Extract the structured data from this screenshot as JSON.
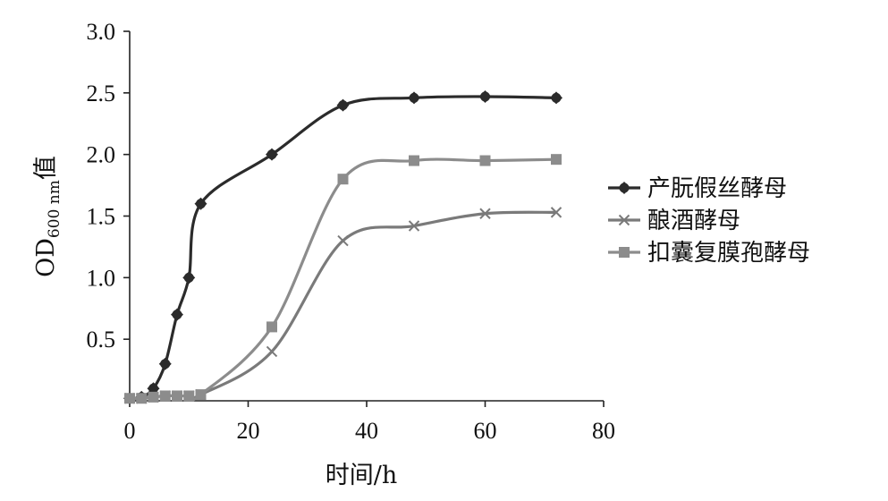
{
  "chart_data": {
    "type": "line",
    "xlabel": "时间/h",
    "ylabel": {
      "main": "OD",
      "sub": "600 nm",
      "suffix": "值"
    },
    "xlim": [
      0,
      80
    ],
    "ylim": [
      0,
      3.0
    ],
    "xticks": [
      "0",
      "20",
      "40",
      "60",
      "80"
    ],
    "yticks": [
      "0.5",
      "1.0",
      "1.5",
      "2.0",
      "2.5",
      "3.0"
    ],
    "grid": false,
    "legend_position": "right",
    "series": [
      {
        "name": "产朊假丝酵母",
        "color": "#2b2b2b",
        "marker": "diamond",
        "x": [
          0,
          2,
          4,
          6,
          8,
          10,
          12,
          24,
          36,
          48,
          60,
          72
        ],
        "y": [
          0.02,
          0.03,
          0.1,
          0.3,
          0.7,
          1.0,
          1.6,
          2.0,
          2.4,
          2.46,
          2.47,
          2.46
        ]
      },
      {
        "name": "酿酒酵母",
        "color": "#7a7a7a",
        "marker": "x",
        "x": [
          0,
          2,
          4,
          6,
          8,
          10,
          12,
          24,
          36,
          48,
          60,
          72
        ],
        "y": [
          0.02,
          0.02,
          0.03,
          0.04,
          0.04,
          0.04,
          0.05,
          0.4,
          1.3,
          1.42,
          1.52,
          1.53
        ]
      },
      {
        "name": "扣囊复膜孢酵母",
        "color": "#8c8c8c",
        "marker": "square",
        "x": [
          0,
          2,
          4,
          6,
          8,
          10,
          12,
          24,
          36,
          48,
          60,
          72
        ],
        "y": [
          0.02,
          0.02,
          0.03,
          0.04,
          0.04,
          0.04,
          0.05,
          0.6,
          1.8,
          1.95,
          1.95,
          1.96
        ]
      }
    ]
  }
}
